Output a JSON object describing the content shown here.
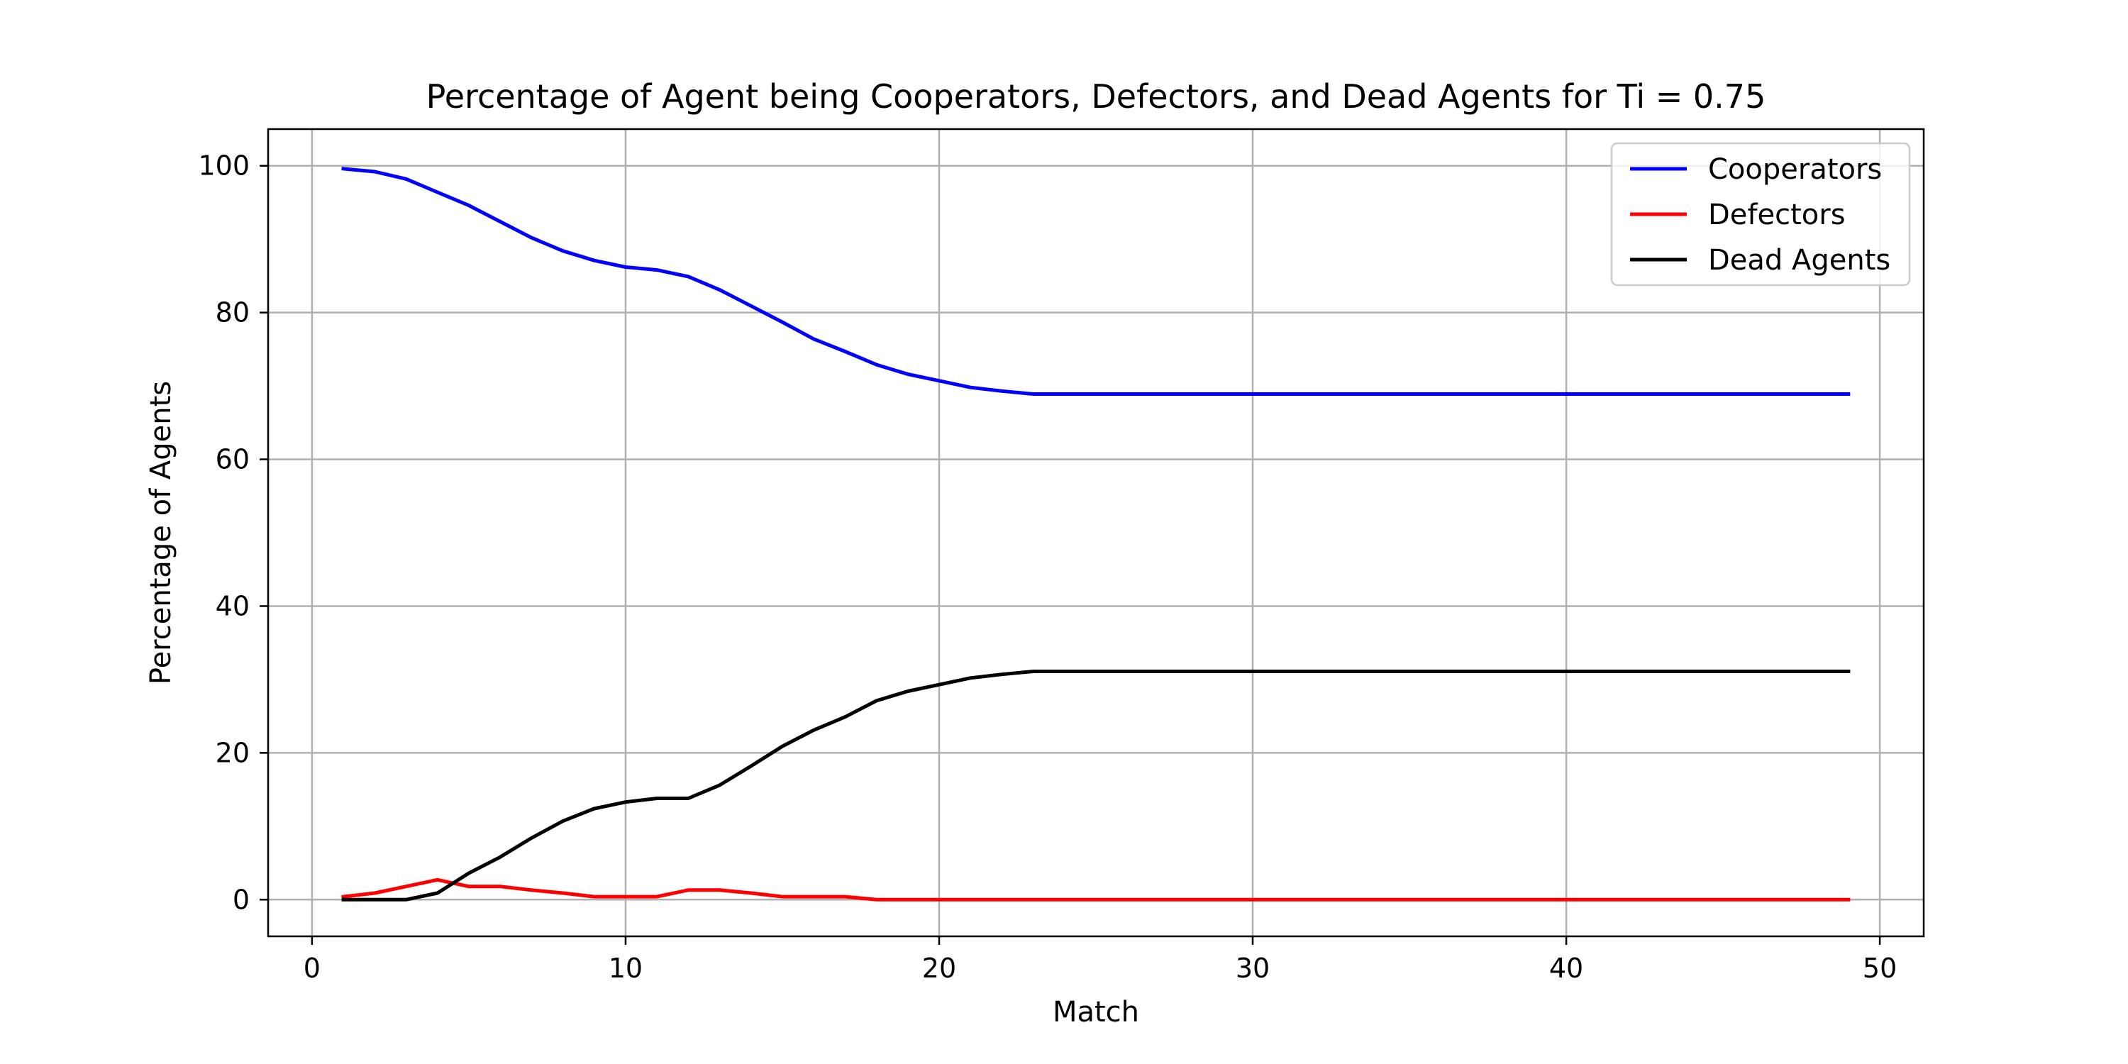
{
  "chart_data": {
    "type": "line",
    "title": "Percentage of Agent being Cooperators, Defectors, and Dead Agents for Ti = 0.75",
    "xlabel": "Match",
    "ylabel": "Percentage of Agents",
    "xlim": [
      -1.4,
      51.4
    ],
    "ylim": [
      -5,
      105
    ],
    "xticks": [
      0,
      10,
      20,
      30,
      40,
      50
    ],
    "yticks": [
      0,
      20,
      40,
      60,
      80,
      100
    ],
    "grid": true,
    "legend_position": "top-right",
    "x": [
      1,
      2,
      3,
      4,
      5,
      6,
      7,
      8,
      9,
      10,
      11,
      12,
      13,
      14,
      15,
      16,
      17,
      18,
      19,
      20,
      21,
      22,
      23,
      24,
      25,
      26,
      27,
      28,
      29,
      30,
      31,
      32,
      33,
      34,
      35,
      36,
      37,
      38,
      39,
      40,
      41,
      42,
      43,
      44,
      45,
      46,
      47,
      48,
      49
    ],
    "series": [
      {
        "name": "Cooperators",
        "color": "#0000ff",
        "values": [
          99.6,
          99.2,
          98.2,
          96.4,
          94.6,
          92.4,
          90.2,
          88.4,
          87.1,
          86.2,
          85.8,
          84.9,
          83.1,
          80.9,
          78.7,
          76.4,
          74.7,
          72.9,
          71.6,
          70.7,
          69.8,
          69.3,
          68.9,
          68.9,
          68.9,
          68.9,
          68.9,
          68.9,
          68.9,
          68.9,
          68.9,
          68.9,
          68.9,
          68.9,
          68.9,
          68.9,
          68.9,
          68.9,
          68.9,
          68.9,
          68.9,
          68.9,
          68.9,
          68.9,
          68.9,
          68.9,
          68.9,
          68.9,
          68.9
        ]
      },
      {
        "name": "Defectors",
        "color": "#ff0000",
        "values": [
          0.4,
          0.9,
          1.8,
          2.7,
          1.8,
          1.8,
          1.3,
          0.9,
          0.4,
          0.4,
          0.4,
          1.3,
          1.3,
          0.9,
          0.4,
          0.4,
          0.4,
          0,
          0,
          0,
          0,
          0,
          0,
          0,
          0,
          0,
          0,
          0,
          0,
          0,
          0,
          0,
          0,
          0,
          0,
          0,
          0,
          0,
          0,
          0,
          0,
          0,
          0,
          0,
          0,
          0,
          0,
          0,
          0
        ]
      },
      {
        "name": "Dead Agents",
        "color": "#000000",
        "values": [
          0,
          0,
          0,
          0.9,
          3.6,
          5.8,
          8.4,
          10.7,
          12.4,
          13.3,
          13.8,
          13.8,
          15.6,
          18.2,
          20.9,
          23.1,
          24.9,
          27.1,
          28.4,
          29.3,
          30.2,
          30.7,
          31.1,
          31.1,
          31.1,
          31.1,
          31.1,
          31.1,
          31.1,
          31.1,
          31.1,
          31.1,
          31.1,
          31.1,
          31.1,
          31.1,
          31.1,
          31.1,
          31.1,
          31.1,
          31.1,
          31.1,
          31.1,
          31.1,
          31.1,
          31.1,
          31.1,
          31.1,
          31.1
        ]
      }
    ]
  }
}
